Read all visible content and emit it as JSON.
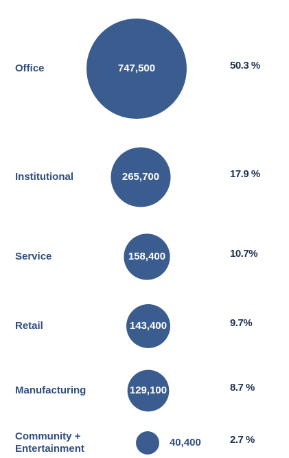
{
  "chart_data": {
    "type": "bubble",
    "categories": [
      "Office",
      "Institutional",
      "Service",
      "Retail",
      "Manufacturing",
      "Community + Entertainment"
    ],
    "series": [
      {
        "color": "#3b5c8e",
        "values": [
          747500,
          265700,
          158400,
          143400,
          129100,
          40400
        ],
        "value_labels": [
          "747,500",
          "265,700",
          "158,400",
          "143,400",
          "129,100",
          "40,400"
        ]
      },
      {
        "values": [
          50.3,
          17.9,
          10.7,
          9.7,
          8.7,
          2.7
        ],
        "value_labels": [
          "50.3 %",
          "17.9 %",
          "10.7%",
          "9.7%",
          "8.7 %",
          "2.7 %"
        ]
      }
    ],
    "label_color": "#2f4d7e",
    "percent_color": "#1f2f4f"
  }
}
